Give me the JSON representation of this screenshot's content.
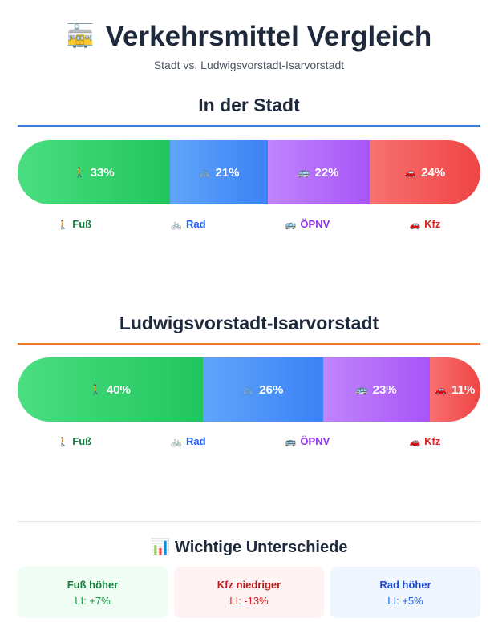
{
  "header": {
    "icon": "🚋",
    "title": "Verkehrsmittel Vergleich",
    "subtitle": "Stadt vs. Ludwigsvorstadt-Isarvorstadt"
  },
  "sections": [
    {
      "title": "In der Stadt",
      "line_color": "#3b7dd8",
      "segments": [
        {
          "icon": "🚶",
          "mode": "Fuß",
          "value": 33,
          "label": "33%"
        },
        {
          "icon": "🚲",
          "mode": "Rad",
          "value": 21,
          "label": "21%"
        },
        {
          "icon": "🚌",
          "mode": "ÖPNV",
          "value": 22,
          "label": "22%"
        },
        {
          "icon": "🚗",
          "mode": "Kfz",
          "value": 24,
          "label": "24%"
        }
      ]
    },
    {
      "title": "Ludwigsvorstadt-Isarvorstadt",
      "line_color": "#f07a2a",
      "segments": [
        {
          "icon": "🚶",
          "mode": "Fuß",
          "value": 40,
          "label": "40%"
        },
        {
          "icon": "🚲",
          "mode": "Rad",
          "value": 26,
          "label": "26%"
        },
        {
          "icon": "🚌",
          "mode": "ÖPNV",
          "value": 23,
          "label": "23%"
        },
        {
          "icon": "🚗",
          "mode": "Kfz",
          "value": 11,
          "label": "11%"
        }
      ]
    }
  ],
  "colors": {
    "Fuß": {
      "grad": [
        "#4ade80",
        "#22c55e"
      ],
      "text": "#15803d"
    },
    "Rad": {
      "grad": [
        "#60a5fa",
        "#3b82f6"
      ],
      "text": "#2563eb"
    },
    "ÖPNV": {
      "grad": [
        "#c084fc",
        "#a855f7"
      ],
      "text": "#9333ea"
    },
    "Kfz": {
      "grad": [
        "#f87171",
        "#ef4444"
      ],
      "text": "#dc2626"
    }
  },
  "differences": {
    "icon": "📊",
    "title": "Wichtige Unterschiede",
    "cards": [
      {
        "title": "Fuß höher",
        "value": "LI: +7%",
        "bg": "#f0fdf4",
        "title_color": "#15803d",
        "value_color": "#16a34a"
      },
      {
        "title": "Kfz niedriger",
        "value": "LI: -13%",
        "bg": "#fef2f2",
        "title_color": "#b91c1c",
        "value_color": "#dc2626"
      },
      {
        "title": "Rad höher",
        "value": "LI: +5%",
        "bg": "#eff6ff",
        "title_color": "#1d4ed8",
        "value_color": "#2563eb"
      }
    ]
  }
}
